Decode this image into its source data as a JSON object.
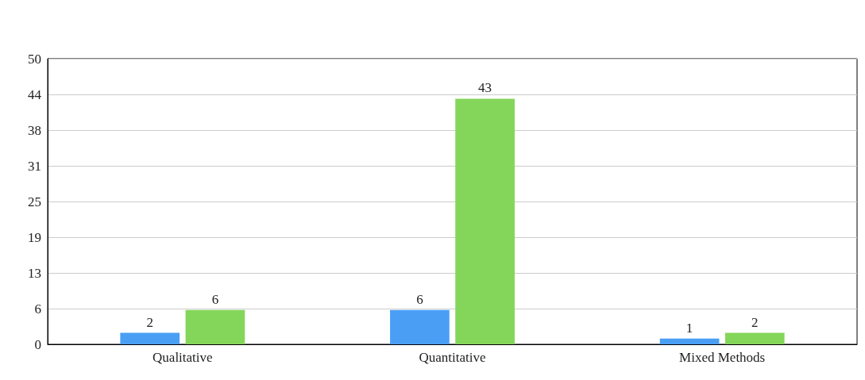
{
  "chart_data": {
    "type": "bar",
    "categories": [
      "Qualitative",
      "Quantitative",
      "Mixed Methods"
    ],
    "series": [
      {
        "color": "#4a9ff5",
        "values": [
          2,
          6,
          1
        ]
      },
      {
        "color": "#84d65a",
        "values": [
          6,
          43,
          2
        ]
      }
    ],
    "ylim": [
      0,
      50
    ],
    "yticks": [
      0,
      {
        "value": 6.25,
        "label": "6"
      },
      {
        "value": 12.5,
        "label": "13"
      },
      {
        "value": 18.75,
        "label": "19"
      },
      25,
      {
        "value": 31.25,
        "label": "31"
      },
      {
        "value": 37.5,
        "label": "38"
      },
      {
        "value": 43.75,
        "label": "44"
      },
      50
    ],
    "grid": "y",
    "data_labels": true
  }
}
